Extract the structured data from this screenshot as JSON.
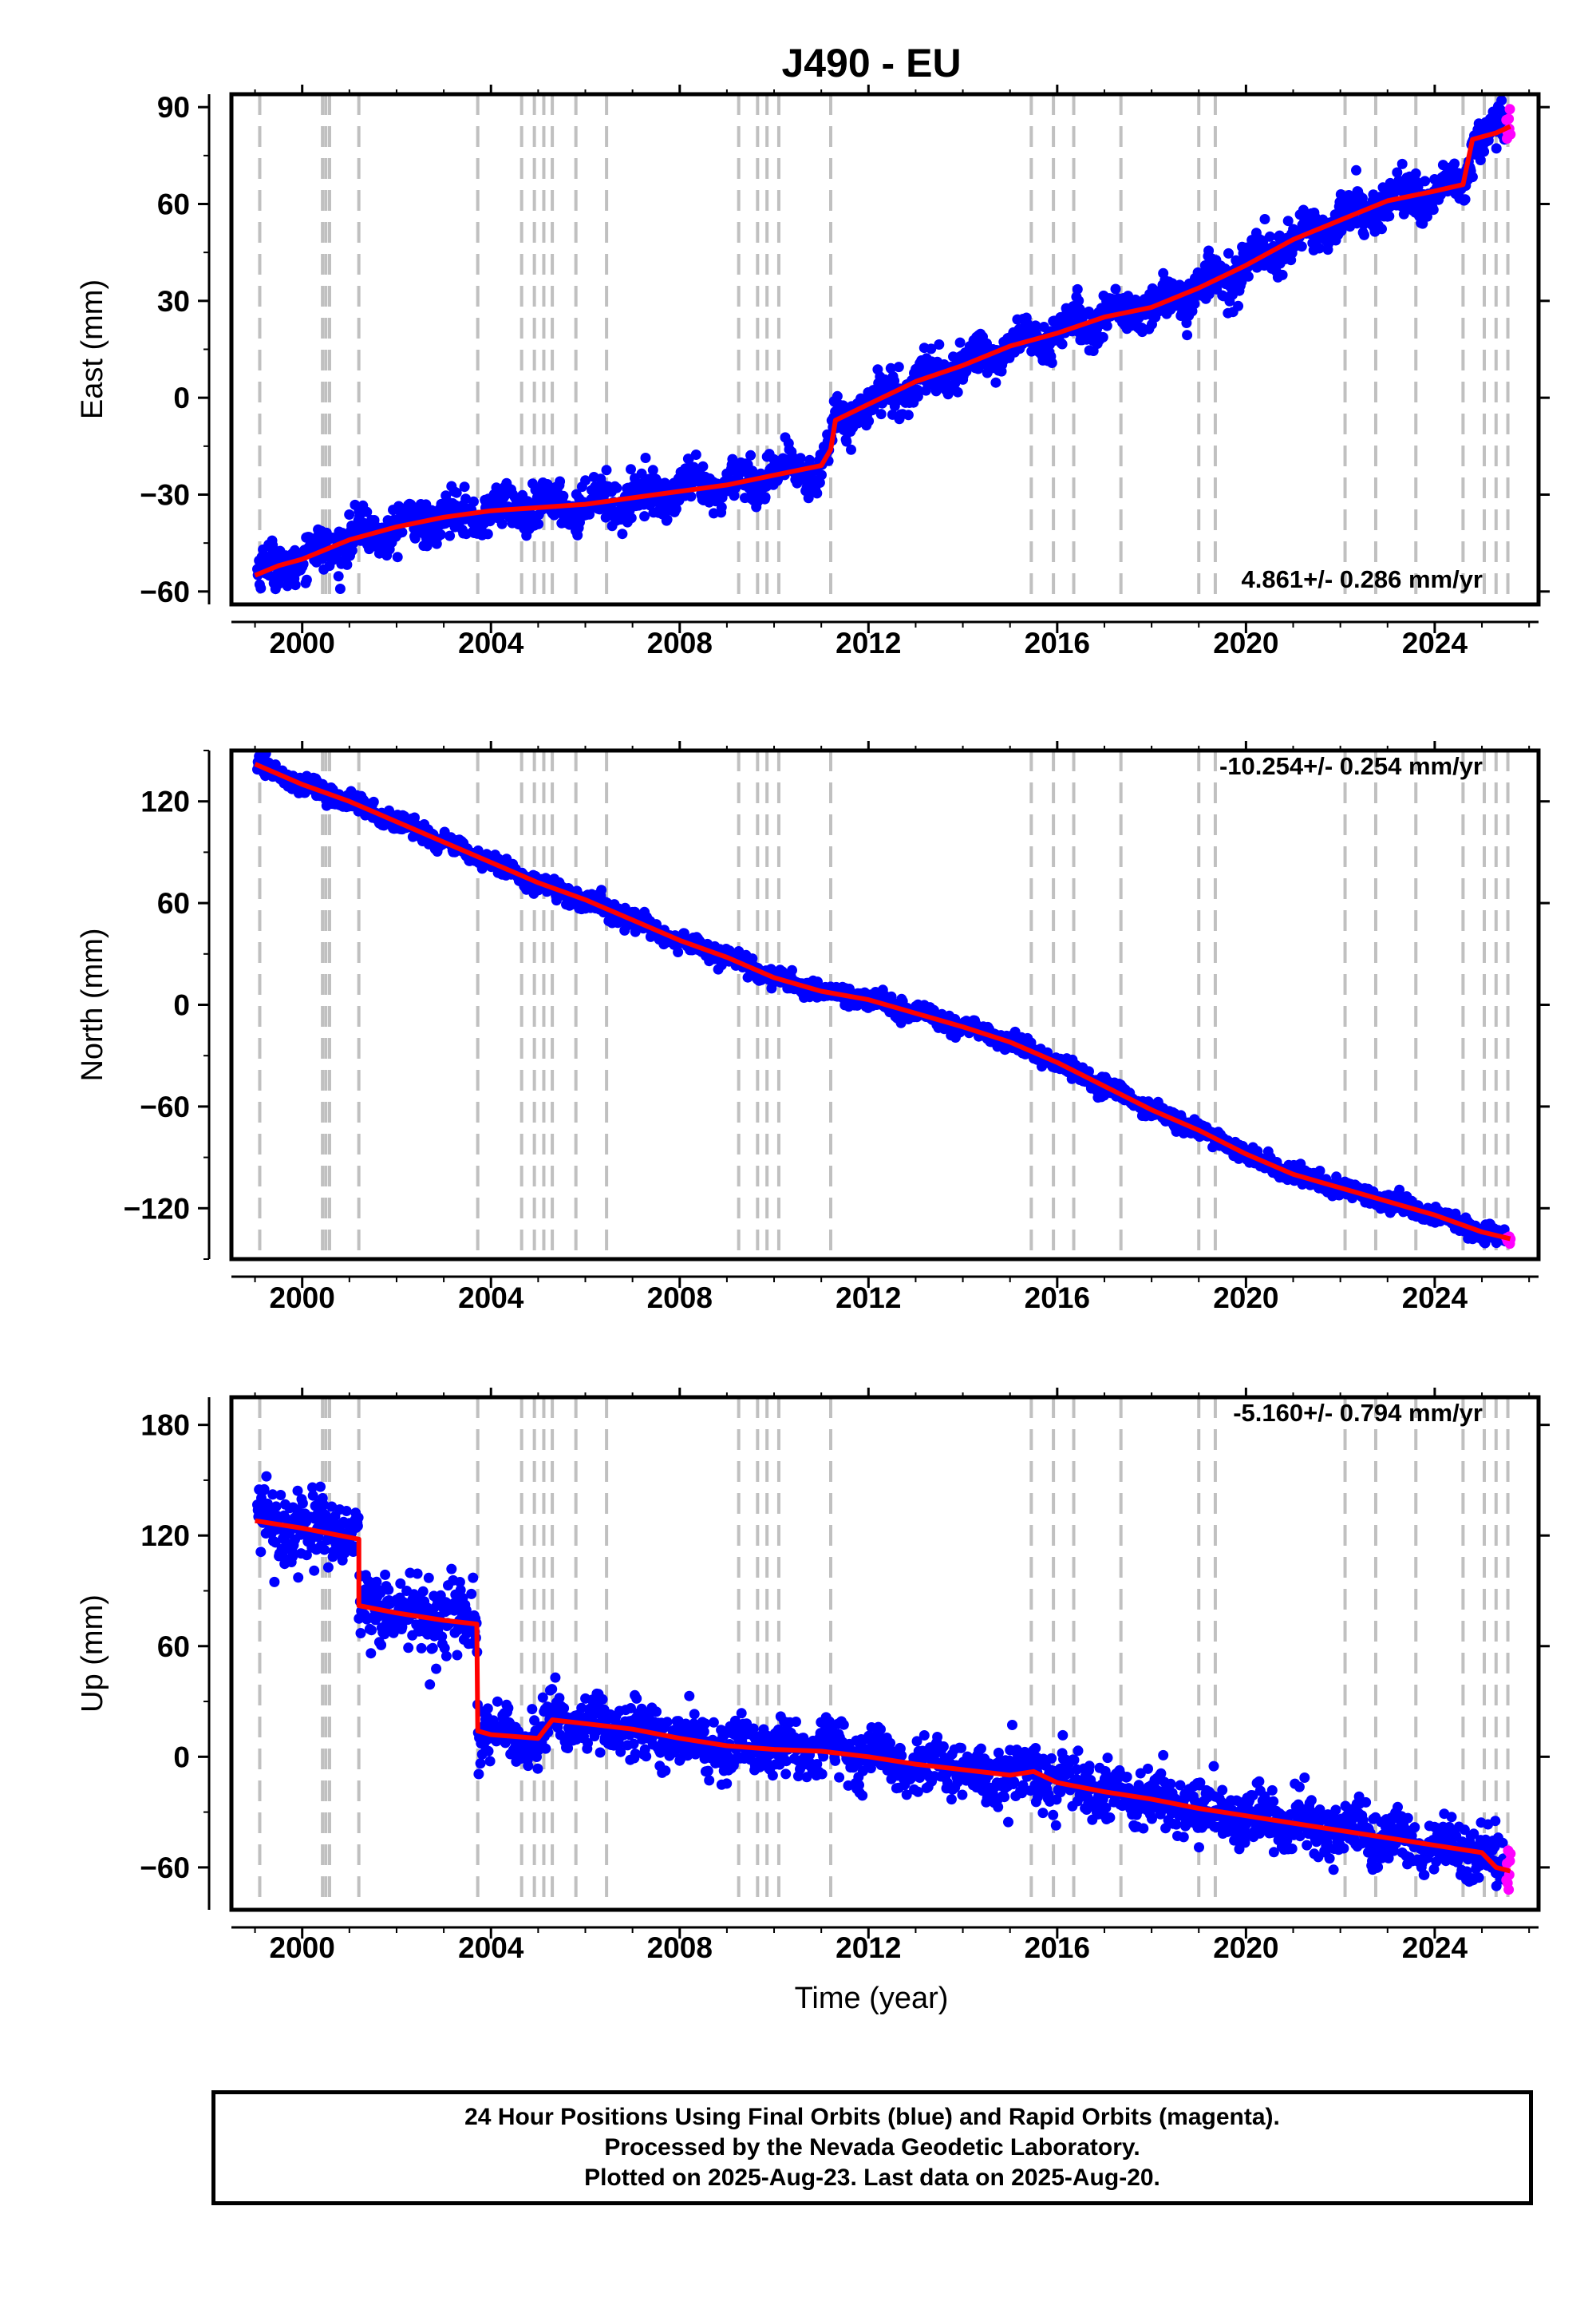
{
  "title": "J490 - EU",
  "xlabel": "Time (year)",
  "footer": {
    "line1": "24 Hour Positions Using Final Orbits (blue) and Rapid Orbits (magenta).",
    "line2": "Processed by the Nevada Geodetic Laboratory.",
    "line3": "Plotted on 2025-Aug-23. Last data on 2025-Aug-20."
  },
  "colors": {
    "final_points": "#0000ff",
    "rapid_points": "#ff00ff",
    "model": "#ff0000",
    "event_lines": "#c0c0c0"
  },
  "event_years": [
    1999.1,
    2000.43,
    2000.5,
    2000.58,
    2001.2,
    2003.72,
    2004.65,
    2004.92,
    2005.12,
    2005.3,
    2005.8,
    2006.45,
    2009.25,
    2009.65,
    2009.85,
    2010.1,
    2011.2,
    2015.45,
    2015.92,
    2016.35,
    2017.35,
    2019.0,
    2019.35,
    2022.1,
    2022.75,
    2023.6,
    2024.6,
    2025.05,
    2025.3,
    2025.55
  ],
  "chart_data": [
    {
      "type": "scatter",
      "ylabel": "East (mm)",
      "rate_label": "4.861+/- 0.286 mm/yr",
      "xlim": [
        1998.5,
        2026.2
      ],
      "ylim": [
        -64,
        94
      ],
      "yticks": [
        -60,
        -30,
        0,
        30,
        60,
        90
      ],
      "xticks": [
        2000,
        2004,
        2008,
        2012,
        2016,
        2020,
        2024
      ],
      "model": [
        [
          1999.0,
          -55
        ],
        [
          1999.5,
          -52
        ],
        [
          2000.0,
          -50
        ],
        [
          2000.5,
          -47
        ],
        [
          2001.0,
          -44
        ],
        [
          2002.0,
          -40
        ],
        [
          2003.0,
          -37
        ],
        [
          2004.0,
          -35
        ],
        [
          2005.0,
          -34
        ],
        [
          2006.0,
          -33
        ],
        [
          2007.0,
          -31
        ],
        [
          2008.0,
          -29
        ],
        [
          2009.0,
          -27
        ],
        [
          2010.0,
          -24
        ],
        [
          2011.0,
          -21
        ],
        [
          2011.2,
          -16
        ],
        [
          2011.3,
          -7
        ],
        [
          2012.0,
          -2
        ],
        [
          2013.0,
          5
        ],
        [
          2014.0,
          10
        ],
        [
          2015.0,
          16
        ],
        [
          2016.0,
          20
        ],
        [
          2017.0,
          25
        ],
        [
          2018.0,
          28
        ],
        [
          2019.0,
          34
        ],
        [
          2020.0,
          41
        ],
        [
          2021.0,
          49
        ],
        [
          2022.0,
          55
        ],
        [
          2023.0,
          61
        ],
        [
          2024.0,
          64
        ],
        [
          2024.6,
          66
        ],
        [
          2024.8,
          80
        ],
        [
          2025.3,
          82
        ],
        [
          2025.6,
          84
        ]
      ]
    },
    {
      "type": "scatter",
      "ylabel": "North (mm)",
      "rate_label": "-10.254+/- 0.254 mm/yr",
      "xlim": [
        1998.5,
        2026.2
      ],
      "ylim": [
        -150,
        150
      ],
      "yticks": [
        -120,
        -60,
        0,
        60,
        120
      ],
      "xticks": [
        2000,
        2004,
        2008,
        2012,
        2016,
        2020,
        2024
      ],
      "model": [
        [
          1999.0,
          142
        ],
        [
          2000.0,
          130
        ],
        [
          2001.0,
          120
        ],
        [
          2002.0,
          108
        ],
        [
          2003.0,
          96
        ],
        [
          2004.0,
          84
        ],
        [
          2005.0,
          72
        ],
        [
          2006.0,
          62
        ],
        [
          2007.0,
          50
        ],
        [
          2008.0,
          38
        ],
        [
          2009.0,
          28
        ],
        [
          2010.0,
          16
        ],
        [
          2011.0,
          8
        ],
        [
          2012.0,
          3
        ],
        [
          2013.0,
          -5
        ],
        [
          2014.0,
          -13
        ],
        [
          2015.0,
          -22
        ],
        [
          2016.0,
          -34
        ],
        [
          2017.0,
          -48
        ],
        [
          2018.0,
          -62
        ],
        [
          2019.0,
          -74
        ],
        [
          2020.0,
          -88
        ],
        [
          2021.0,
          -100
        ],
        [
          2022.0,
          -108
        ],
        [
          2023.0,
          -116
        ],
        [
          2024.0,
          -124
        ],
        [
          2025.0,
          -134
        ],
        [
          2025.6,
          -138
        ]
      ]
    },
    {
      "type": "scatter",
      "ylabel": "Up (mm)",
      "rate_label": "-5.160+/- 0.794 mm/yr",
      "xlim": [
        1998.5,
        2026.2
      ],
      "ylim": [
        -83,
        195
      ],
      "yticks": [
        -60,
        0,
        60,
        120,
        180
      ],
      "xticks": [
        2000,
        2004,
        2008,
        2012,
        2016,
        2020,
        2024
      ],
      "model": [
        [
          1999.0,
          128
        ],
        [
          2000.0,
          124
        ],
        [
          2001.2,
          118
        ],
        [
          2001.2,
          82
        ],
        [
          2002.0,
          78
        ],
        [
          2003.0,
          74
        ],
        [
          2003.7,
          72
        ],
        [
          2003.72,
          14
        ],
        [
          2004.0,
          12
        ],
        [
          2005.0,
          10
        ],
        [
          2005.3,
          20
        ],
        [
          2006.0,
          18
        ],
        [
          2007.0,
          15
        ],
        [
          2008.0,
          10
        ],
        [
          2009.0,
          6
        ],
        [
          2010.0,
          4
        ],
        [
          2011.0,
          3
        ],
        [
          2012.0,
          0
        ],
        [
          2013.0,
          -4
        ],
        [
          2014.0,
          -7
        ],
        [
          2015.0,
          -10
        ],
        [
          2015.5,
          -8
        ],
        [
          2016.0,
          -14
        ],
        [
          2017.0,
          -19
        ],
        [
          2018.0,
          -23
        ],
        [
          2019.0,
          -28
        ],
        [
          2020.0,
          -32
        ],
        [
          2021.0,
          -36
        ],
        [
          2022.0,
          -40
        ],
        [
          2023.0,
          -44
        ],
        [
          2024.0,
          -48
        ],
        [
          2025.0,
          -52
        ],
        [
          2025.3,
          -60
        ],
        [
          2025.6,
          -62
        ]
      ]
    }
  ]
}
